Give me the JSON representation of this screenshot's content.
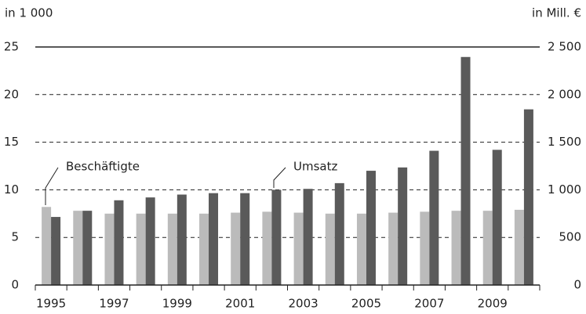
{
  "chart_data": {
    "type": "bar",
    "y_label": "in 1 000",
    "y2_label": "in Mill. €",
    "categories": [
      "1995",
      null,
      "1997",
      null,
      "1999",
      null,
      "2001",
      null,
      "2003",
      null,
      "2005",
      null,
      "2007",
      null,
      "2009",
      null
    ],
    "series": [
      {
        "name": "Beschäftigte",
        "color": "#bbbbbb",
        "values": [
          8.2,
          7.8,
          7.5,
          7.5,
          7.5,
          7.5,
          7.6,
          7.7,
          7.6,
          7.5,
          7.5,
          7.6,
          7.7,
          7.8,
          7.8,
          7.9
        ]
      },
      {
        "name": "Umsatz",
        "color": "#5a5a5a",
        "axis": "y2",
        "values": [
          715,
          780,
          890,
          920,
          950,
          965,
          965,
          1000,
          1010,
          1070,
          1200,
          1235,
          1410,
          2395,
          1420,
          1845
        ]
      }
    ],
    "ylim": [
      0,
      25
    ],
    "yticks": [
      0,
      5,
      10,
      15,
      20,
      25
    ],
    "y2lim": [
      0,
      2500
    ],
    "y2ticks": [
      0,
      500,
      {
        "value": 1000,
        "label": "1 000"
      },
      {
        "value": 1500,
        "label": "1 500"
      },
      {
        "value": 2000,
        "label": "2 000"
      },
      {
        "value": 2500,
        "label": "2 500"
      }
    ],
    "grid": true
  }
}
